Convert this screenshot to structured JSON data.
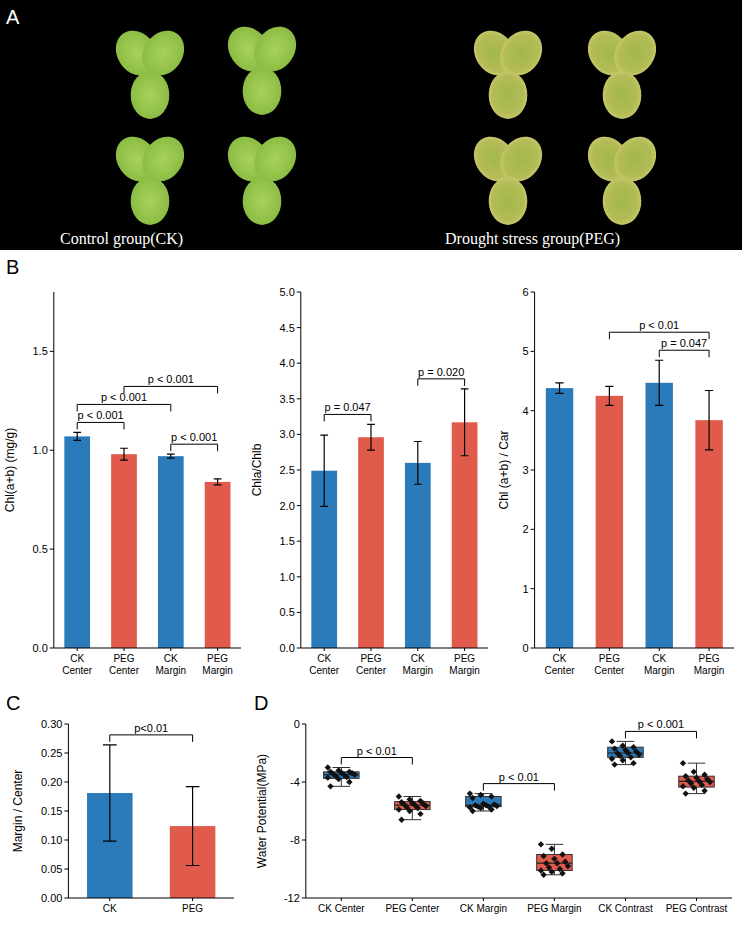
{
  "panel_letters": [
    "A",
    "B",
    "C",
    "D"
  ],
  "photo": {
    "labels": [
      "Control group(CK)",
      "Drought stress group(PEG)"
    ]
  },
  "chart_data": [
    {
      "type": "bar",
      "y_label": "Chl(a+b)  (mg/g)",
      "categories": [
        "CK Center",
        "PEG Center",
        "CK Margin",
        "PEG Margin"
      ],
      "values": [
        1.07,
        0.98,
        0.97,
        0.84
      ],
      "errors": [
        0.02,
        0.03,
        0.01,
        0.015
      ],
      "colors": [
        "#2b7bba",
        "#e15b4d",
        "#2b7bba",
        "#e15b4d"
      ],
      "ylim": [
        0,
        1.8
      ],
      "yticks": [
        {
          "value": 0,
          "label": "0.0"
        },
        0.5,
        {
          "value": 1,
          "label": "1.0"
        },
        1.5
      ],
      "grid": false,
      "annotations": [
        {
          "text": "p < 0.001",
          "between": [
            "CK Center",
            "PEG Center"
          ]
        },
        {
          "text": "p < 0.001",
          "between": [
            "CK Margin",
            "PEG Margin"
          ]
        },
        {
          "text": "p < 0.001",
          "between": [
            "CK Center",
            "CK Margin"
          ]
        },
        {
          "text": "p < 0.001",
          "between": [
            "PEG Center",
            "PEG Margin"
          ]
        }
      ]
    },
    {
      "type": "bar",
      "y_label": "Chla/Chlb",
      "categories": [
        "CK Center",
        "PEG Center",
        "CK Margin",
        "PEG Margin"
      ],
      "values": [
        2.49,
        2.96,
        2.6,
        3.17
      ],
      "errors": [
        0.5,
        0.18,
        0.3,
        0.47
      ],
      "colors": [
        "#2b7bba",
        "#e15b4d",
        "#2b7bba",
        "#e15b4d"
      ],
      "ylim": [
        0,
        5
      ],
      "yticks": [
        {
          "value": 0,
          "label": "0.0"
        },
        0.5,
        {
          "value": 1,
          "label": "1.0"
        },
        1.5,
        {
          "value": 2,
          "label": "2.0"
        },
        2.5,
        {
          "value": 3,
          "label": "3.0"
        },
        3.5,
        {
          "value": 4,
          "label": "4.0"
        },
        4.5,
        {
          "value": 5,
          "label": "5.0"
        }
      ],
      "grid": false,
      "annotations": [
        {
          "text": "p = 0.047",
          "between": [
            "CK Center",
            "PEG Center"
          ]
        },
        {
          "text": "p = 0.020",
          "between": [
            "CK Margin",
            "PEG Margin"
          ]
        }
      ]
    },
    {
      "type": "bar",
      "y_label": "Chl (a+b) / Car",
      "categories": [
        "CK Center",
        "PEG Center",
        "CK Margin",
        "PEG Margin"
      ],
      "values": [
        4.38,
        4.25,
        4.47,
        3.84
      ],
      "errors": [
        0.09,
        0.16,
        0.38,
        0.5
      ],
      "colors": [
        "#2b7bba",
        "#e15b4d",
        "#2b7bba",
        "#e15b4d"
      ],
      "ylim": [
        0,
        6
      ],
      "yticks": [
        0,
        1,
        2,
        3,
        4,
        5,
        6
      ],
      "grid": false,
      "annotations": [
        {
          "text": "p = 0.047",
          "between": [
            "CK Margin",
            "PEG Margin"
          ]
        },
        {
          "text": "p < 0.01",
          "between": [
            "PEG Center",
            "PEG Margin"
          ]
        }
      ]
    },
    {
      "type": "bar",
      "y_label": "Margin / Center",
      "categories": [
        "CK",
        "PEG"
      ],
      "values": [
        0.181,
        0.124
      ],
      "errors": [
        0.083,
        0.068
      ],
      "colors": [
        "#2b7bba",
        "#e15b4d"
      ],
      "ylim": [
        0,
        0.3
      ],
      "yticks": [
        {
          "value": 0,
          "label": "0.00"
        },
        0.05,
        {
          "value": 0.1,
          "label": "0.10"
        },
        0.15,
        {
          "value": 0.2,
          "label": "0.20"
        },
        0.25,
        {
          "value": 0.3,
          "label": "0.30"
        }
      ],
      "grid": false,
      "annotations": [
        {
          "text": "p<0.01",
          "between": [
            "CK",
            "PEG"
          ]
        }
      ]
    },
    {
      "type": "box",
      "y_label": "Water Potential(MPa)",
      "categories": [
        "CK Center",
        "PEG Center",
        "CK Margin",
        "PEG Margin",
        "CK Contrast",
        "PEG Contrast"
      ],
      "colors": [
        "#2b7bba",
        "#e15b4d",
        "#2b7bba",
        "#e15b4d",
        "#2b7bba",
        "#e15b4d"
      ],
      "marker": "diamond",
      "min": [
        -4.3,
        -6.6,
        -6.0,
        -10.4,
        -2.8,
        -4.8
      ],
      "q1": [
        -3.75,
        -5.9,
        -5.7,
        -10.1,
        -2.3,
        -4.35
      ],
      "median": [
        -3.5,
        -5.6,
        -5.6,
        -9.6,
        -2.0,
        -3.95
      ],
      "q3": [
        -3.3,
        -5.35,
        -5.0,
        -9.0,
        -1.6,
        -3.6
      ],
      "max": [
        -3.0,
        -5.0,
        -4.8,
        -8.3,
        -1.2,
        -2.7
      ],
      "points": [
        [
          -3.0,
          -3.2,
          -3.3,
          -3.3,
          -3.35,
          -3.4,
          -3.45,
          -3.5,
          -3.5,
          -3.6,
          -3.65,
          -3.7,
          -3.8,
          -4.0,
          -4.3
        ],
        [
          -5.0,
          -5.2,
          -5.3,
          -5.4,
          -5.45,
          -5.5,
          -5.55,
          -5.6,
          -5.65,
          -5.75,
          -5.8,
          -5.9,
          -6.0,
          -6.2,
          -6.6
        ],
        [
          -4.8,
          -4.9,
          -5.0,
          -5.1,
          -5.5,
          -5.55,
          -5.6,
          -5.6,
          -5.65,
          -5.7,
          -5.7,
          -5.75,
          -5.8,
          -5.9,
          -6.0
        ],
        [
          -8.3,
          -8.6,
          -9.0,
          -9.1,
          -9.3,
          -9.5,
          -9.6,
          -9.6,
          -9.8,
          -9.9,
          -10.0,
          -10.1,
          -10.2,
          -10.3,
          -10.4
        ],
        [
          -1.2,
          -1.5,
          -1.6,
          -1.7,
          -1.8,
          -1.9,
          -2.0,
          -2.0,
          -2.1,
          -2.2,
          -2.3,
          -2.4,
          -2.5,
          -2.7,
          -2.8
        ],
        [
          -2.7,
          -3.3,
          -3.5,
          -3.6,
          -3.7,
          -3.8,
          -3.9,
          -3.95,
          -4.0,
          -4.1,
          -4.2,
          -4.3,
          -4.4,
          -4.6,
          -4.8
        ]
      ],
      "ylim": [
        -12,
        0
      ],
      "yticks": [
        -12,
        -8,
        -4,
        0
      ],
      "grid": false,
      "annotations": [
        {
          "text": "p < 0.01",
          "between": [
            "CK Center",
            "PEG Center"
          ]
        },
        {
          "text": "p < 0.01",
          "between": [
            "CK Margin",
            "PEG Margin"
          ]
        },
        {
          "text": "p < 0.001",
          "between": [
            "CK Contrast",
            "PEG Contrast"
          ]
        }
      ]
    }
  ]
}
